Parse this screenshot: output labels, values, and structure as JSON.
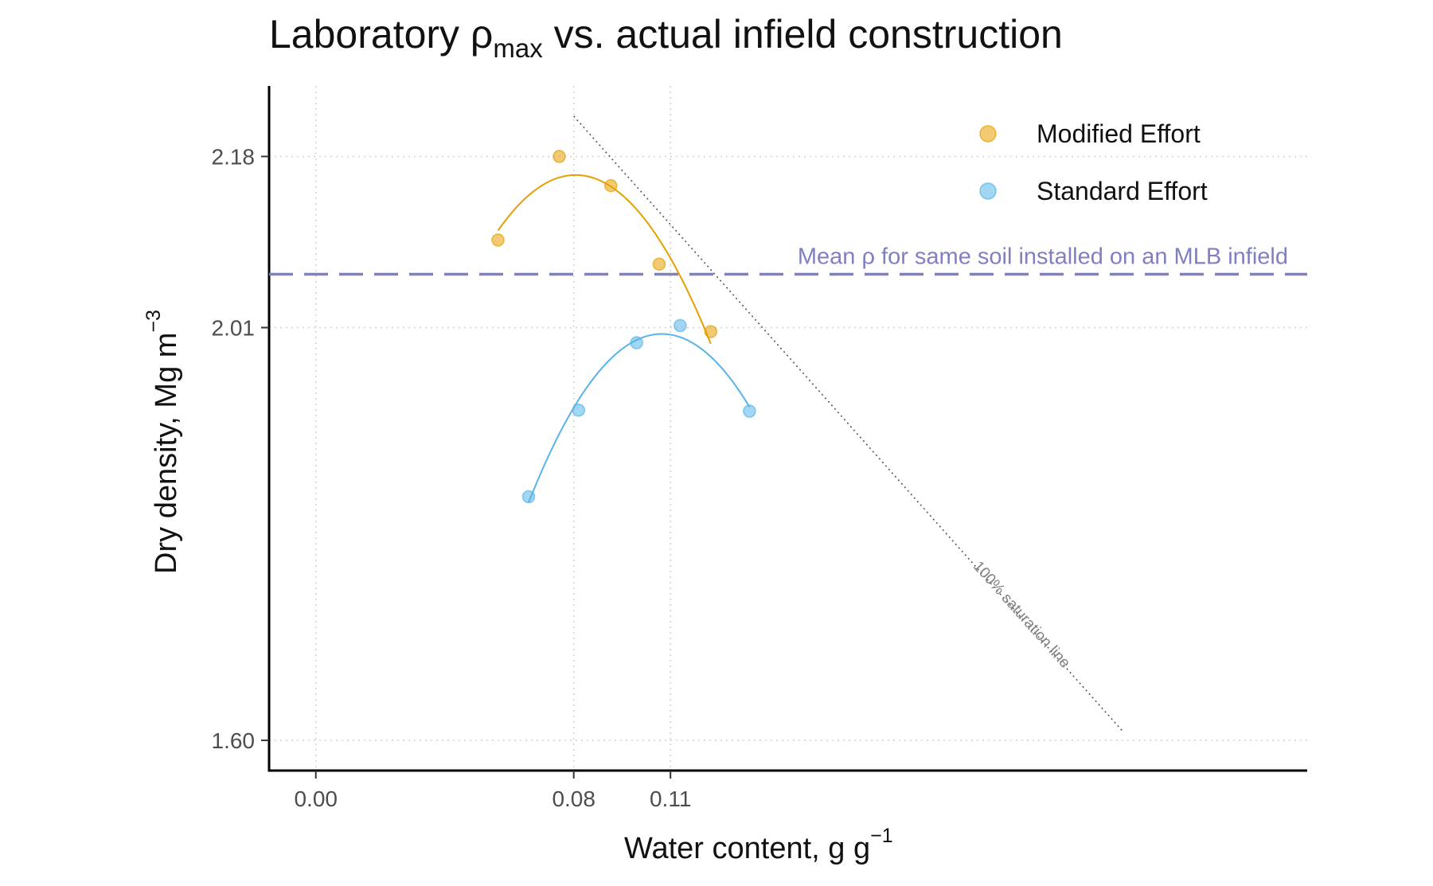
{
  "chart_data": {
    "type": "scatter",
    "title_main": "Laboratory ρ",
    "title_sub": "max",
    "title_rest": " vs. actual infield construction",
    "xlabel_main": "Water content, g g",
    "xlabel_sup": "−1",
    "ylabel_main": "Dry density, Mg m",
    "ylabel_sup": "−3",
    "xlim": [
      -0.0145,
      0.3075
    ],
    "ylim": [
      1.57,
      2.25
    ],
    "x_ticks": [
      {
        "value": 0.0,
        "label": "0.00"
      },
      {
        "value": 0.08,
        "label": "0.08"
      },
      {
        "value": 0.11,
        "label": "0.11"
      }
    ],
    "y_ticks": [
      {
        "value": 1.6,
        "label": "1.60"
      },
      {
        "value": 2.01,
        "label": "2.01"
      },
      {
        "value": 2.18,
        "label": "2.18"
      }
    ],
    "grid": true,
    "legend_position": "top-right",
    "series": [
      {
        "name": "Modified Effort",
        "color": "#E69F00",
        "x": [
          0.0565,
          0.0755,
          0.0915,
          0.1065,
          0.1225
        ],
        "y": [
          2.097,
          2.18,
          2.151,
          2.073,
          2.006
        ]
      },
      {
        "name": "Standard Effort",
        "color": "#56B4E9",
        "x": [
          0.066,
          0.0815,
          0.0995,
          0.113,
          0.1345
        ],
        "y": [
          1.842,
          1.928,
          1.995,
          2.012,
          1.927
        ]
      }
    ],
    "mean_line": {
      "y": 2.063,
      "label": "Mean ρ for same soil installed on an MLB infield",
      "color": "#7f7fc4"
    },
    "saturation_line": {
      "label": "100% saturation line",
      "x": [
        0.08,
        0.25
      ],
      "y": [
        2.22,
        1.61
      ]
    }
  }
}
